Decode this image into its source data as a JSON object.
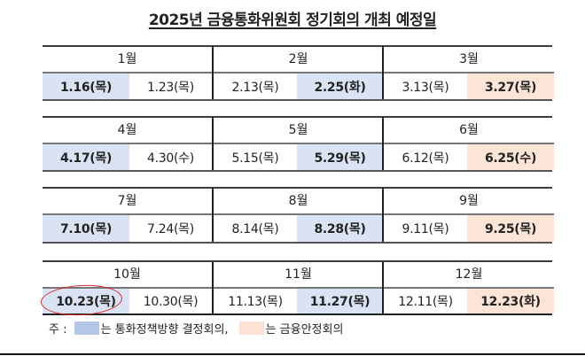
{
  "title": "2025년 금융통화위원회 정기회의 개최 예정일",
  "colors": {
    "monetary_policy_cell": "#dae3f3",
    "financial_stability_cell": "#fce4d6",
    "legend_blue": "#b4c7e7",
    "legend_peach": "#fbe2d5",
    "highlight_circle": "#d42b2b"
  },
  "blocks": [
    {
      "months": [
        {
          "label": "1월",
          "dates": [
            {
              "text": "1.16(목)",
              "type": "monetary_policy"
            },
            {
              "text": "1.23(목)",
              "type": "regular"
            }
          ]
        },
        {
          "label": "2월",
          "dates": [
            {
              "text": "2.13(목)",
              "type": "regular"
            },
            {
              "text": "2.25(화)",
              "type": "monetary_policy"
            }
          ]
        },
        {
          "label": "3월",
          "dates": [
            {
              "text": "3.13(목)",
              "type": "regular"
            },
            {
              "text": "3.27(목)",
              "type": "financial_stability"
            }
          ]
        }
      ]
    },
    {
      "months": [
        {
          "label": "4월",
          "dates": [
            {
              "text": "4.17(목)",
              "type": "monetary_policy"
            },
            {
              "text": "4.30(수)",
              "type": "regular"
            }
          ]
        },
        {
          "label": "5월",
          "dates": [
            {
              "text": "5.15(목)",
              "type": "regular"
            },
            {
              "text": "5.29(목)",
              "type": "monetary_policy"
            }
          ]
        },
        {
          "label": "6월",
          "dates": [
            {
              "text": "6.12(목)",
              "type": "regular"
            },
            {
              "text": "6.25(수)",
              "type": "financial_stability"
            }
          ]
        }
      ]
    },
    {
      "months": [
        {
          "label": "7월",
          "dates": [
            {
              "text": "7.10(목)",
              "type": "monetary_policy"
            },
            {
              "text": "7.24(목)",
              "type": "regular"
            }
          ]
        },
        {
          "label": "8월",
          "dates": [
            {
              "text": "8.14(목)",
              "type": "regular"
            },
            {
              "text": "8.28(목)",
              "type": "monetary_policy"
            }
          ]
        },
        {
          "label": "9월",
          "dates": [
            {
              "text": "9.11(목)",
              "type": "regular"
            },
            {
              "text": "9.25(목)",
              "type": "financial_stability"
            }
          ]
        }
      ]
    },
    {
      "months": [
        {
          "label": "10월",
          "dates": [
            {
              "text": "10.23(목)",
              "type": "monetary_policy",
              "circled": true
            },
            {
              "text": "10.30(목)",
              "type": "regular"
            }
          ]
        },
        {
          "label": "11월",
          "dates": [
            {
              "text": "11.13(목)",
              "type": "regular"
            },
            {
              "text": "11.27(목)",
              "type": "monetary_policy"
            }
          ]
        },
        {
          "label": "12월",
          "dates": [
            {
              "text": "12.11(목)",
              "type": "regular"
            },
            {
              "text": "12.23(화)",
              "type": "financial_stability"
            }
          ]
        }
      ]
    }
  ],
  "legend": {
    "prefix": "주 : ",
    "blue_label": "는 통화정책방향 결정회의,",
    "peach_label": "는 금융안정회의"
  }
}
